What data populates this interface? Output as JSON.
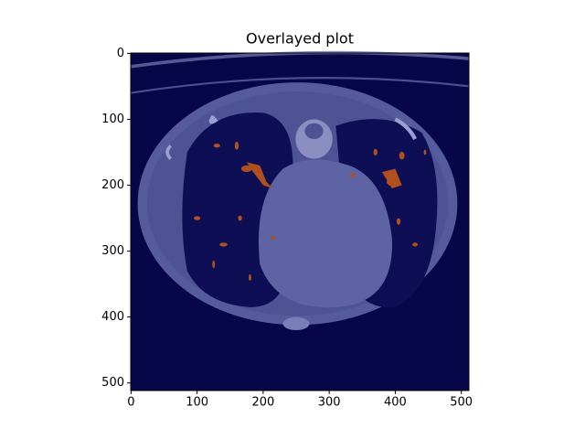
{
  "chart_data": {
    "type": "image",
    "title": "Overlayed plot",
    "xlim": [
      -0.5,
      511.5
    ],
    "ylim": [
      511.5,
      -0.5
    ],
    "xticks": [
      0,
      100,
      200,
      300,
      400,
      500
    ],
    "yticks": [
      0,
      100,
      200,
      300,
      400,
      500
    ]
  }
}
